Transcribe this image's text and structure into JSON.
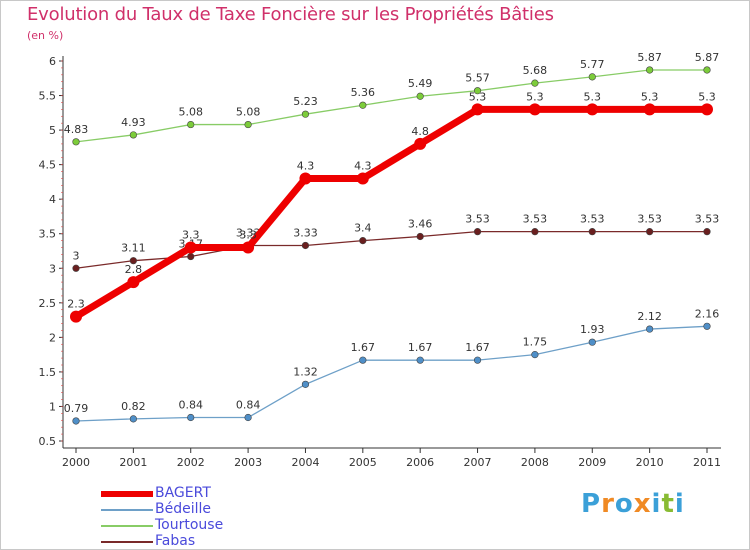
{
  "header": {
    "title": "Evolution du Taux de Taxe Foncière sur les Propriétés Bâties",
    "unit": "(en %)"
  },
  "chart_data": {
    "type": "line",
    "title": "Evolution du Taux de Taxe Foncière sur les Propriétés Bâties",
    "ylabel": "(en %)",
    "xlabel": "",
    "ylim": [
      0.5,
      6
    ],
    "grid": false,
    "x": [
      "2000",
      "2001",
      "2002",
      "2003",
      "2004",
      "2005",
      "2006",
      "2007",
      "2008",
      "2009",
      "2010",
      "2011"
    ],
    "yticks": [
      "0.5",
      "1",
      "1.5",
      "2",
      "2.5",
      "3",
      "3.5",
      "4",
      "4.5",
      "5",
      "5.5",
      "6"
    ],
    "series": [
      {
        "name": "BAGERT",
        "color": "#ee0000",
        "values": [
          2.3,
          2.8,
          3.3,
          3.3,
          4.3,
          4.3,
          4.8,
          5.3,
          5.3,
          5.3,
          5.3,
          5.3
        ],
        "labels": [
          "2.3",
          "2.8",
          "3.3",
          "3.3",
          "4.3",
          "4.3",
          "4.8",
          "5.3",
          "5.3",
          "5.3",
          "5.3",
          "5.3"
        ]
      },
      {
        "name": "Bédeille",
        "color": "#6ea0c8",
        "values": [
          0.79,
          0.82,
          0.84,
          0.84,
          1.32,
          1.67,
          1.67,
          1.67,
          1.75,
          1.93,
          2.12,
          2.16
        ],
        "labels": [
          "0.79",
          "0.82",
          "0.84",
          "0.84",
          "1.32",
          "1.67",
          "1.67",
          "1.67",
          "1.75",
          "1.93",
          "2.12",
          "2.16"
        ]
      },
      {
        "name": "Tourtouse",
        "color": "#88cc66",
        "values": [
          4.83,
          4.93,
          5.08,
          5.08,
          5.23,
          5.36,
          5.49,
          5.57,
          5.68,
          5.77,
          5.87,
          5.87
        ],
        "labels": [
          "4.83",
          "4.93",
          "5.08",
          "5.08",
          "5.23",
          "5.36",
          "5.49",
          "5.57",
          "5.68",
          "5.77",
          "5.87",
          "5.87"
        ]
      },
      {
        "name": "Fabas",
        "color": "#7a2a2a",
        "values": [
          3.0,
          3.11,
          3.17,
          3.33,
          3.33,
          3.4,
          3.46,
          3.53,
          3.53,
          3.53,
          3.53,
          3.53
        ],
        "labels": [
          "3",
          "3.11",
          "3.17",
          "3.33",
          "3.33",
          "3.4",
          "3.46",
          "3.53",
          "3.53",
          "3.53",
          "3.53",
          "3.53"
        ]
      }
    ],
    "legend_position": "bottom-left"
  },
  "branding": {
    "logo_letters": [
      "P",
      "r",
      "o",
      "x",
      "i",
      "t",
      "i"
    ],
    "logo_colors": [
      "#3ba0d8",
      "#f08a24",
      "#3ba0d8",
      "#f08a24",
      "#3ba0d8",
      "#88bb33",
      "#3ba0d8"
    ]
  }
}
